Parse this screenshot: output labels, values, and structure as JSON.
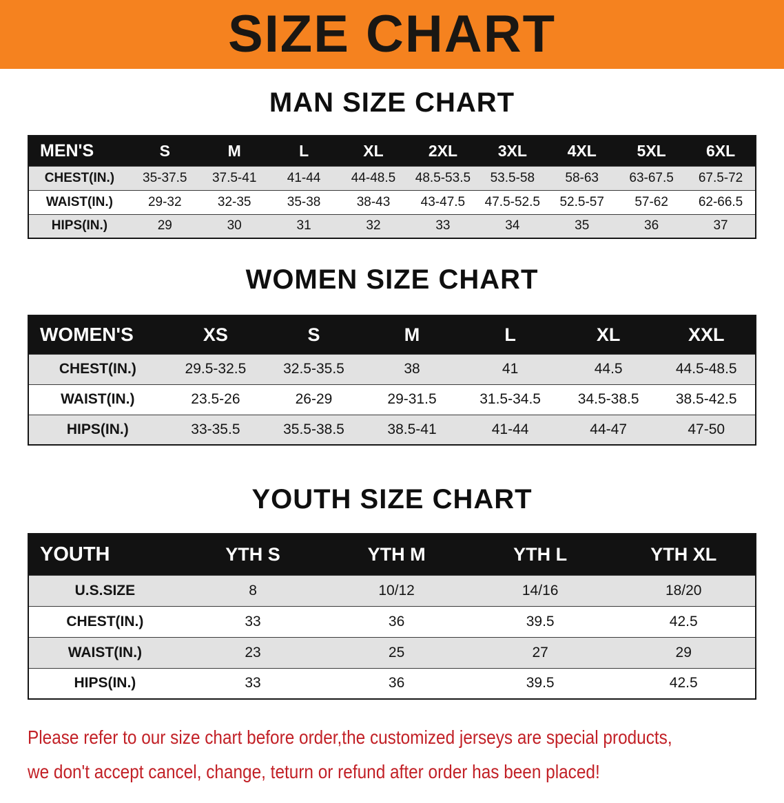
{
  "banner": {
    "title": "SIZE CHART"
  },
  "colors": {
    "banner_orange": "#f5821f",
    "table_header_black": "#121212",
    "row_gray": "#e2e2e2",
    "notice_red": "#c22026"
  },
  "sections": [
    {
      "heading": "MAN SIZE CHART",
      "table": {
        "header": [
          "MEN'S",
          "S",
          "M",
          "L",
          "XL",
          "2XL",
          "3XL",
          "4XL",
          "5XL",
          "6XL"
        ],
        "rows": [
          {
            "label": "CHEST(IN.)",
            "values": [
              "35-37.5",
              "37.5-41",
              "41-44",
              "44-48.5",
              "48.5-53.5",
              "53.5-58",
              "58-63",
              "63-67.5",
              "67.5-72"
            ]
          },
          {
            "label": "WAIST(IN.)",
            "values": [
              "29-32",
              "32-35",
              "35-38",
              "38-43",
              "43-47.5",
              "47.5-52.5",
              "52.5-57",
              "57-62",
              "62-66.5"
            ]
          },
          {
            "label": "HIPS(IN.)",
            "values": [
              "29",
              "30",
              "31",
              "32",
              "33",
              "34",
              "35",
              "36",
              "37"
            ]
          }
        ]
      }
    },
    {
      "heading": "WOMEN SIZE CHART",
      "table": {
        "header": [
          "WOMEN'S",
          "XS",
          "S",
          "M",
          "L",
          "XL",
          "XXL"
        ],
        "rows": [
          {
            "label": "CHEST(IN.)",
            "values": [
              "29.5-32.5",
              "32.5-35.5",
              "38",
              "41",
              "44.5",
              "44.5-48.5"
            ]
          },
          {
            "label": "WAIST(IN.)",
            "values": [
              "23.5-26",
              "26-29",
              "29-31.5",
              "31.5-34.5",
              "34.5-38.5",
              "38.5-42.5"
            ]
          },
          {
            "label": "HIPS(IN.)",
            "values": [
              "33-35.5",
              "35.5-38.5",
              "38.5-41",
              "41-44",
              "44-47",
              "47-50"
            ]
          }
        ]
      }
    },
    {
      "heading": "YOUTH SIZE CHART",
      "table": {
        "header": [
          "YOUTH",
          "YTH S",
          "YTH M",
          "YTH L",
          "YTH XL"
        ],
        "rows": [
          {
            "label": "U.S.SIZE",
            "values": [
              "8",
              "10/12",
              "14/16",
              "18/20"
            ]
          },
          {
            "label": "CHEST(IN.)",
            "values": [
              "33",
              "36",
              "39.5",
              "42.5"
            ]
          },
          {
            "label": "WAIST(IN.)",
            "values": [
              "23",
              "25",
              "27",
              "29"
            ]
          },
          {
            "label": "HIPS(IN.)",
            "values": [
              "33",
              "36",
              "39.5",
              "42.5"
            ]
          }
        ]
      }
    }
  ],
  "footer": {
    "line1": "Please refer to our size chart before order,the customized jerseys are special products,",
    "line2": "we don't accept cancel, change, teturn or refund after order has been placed!"
  }
}
